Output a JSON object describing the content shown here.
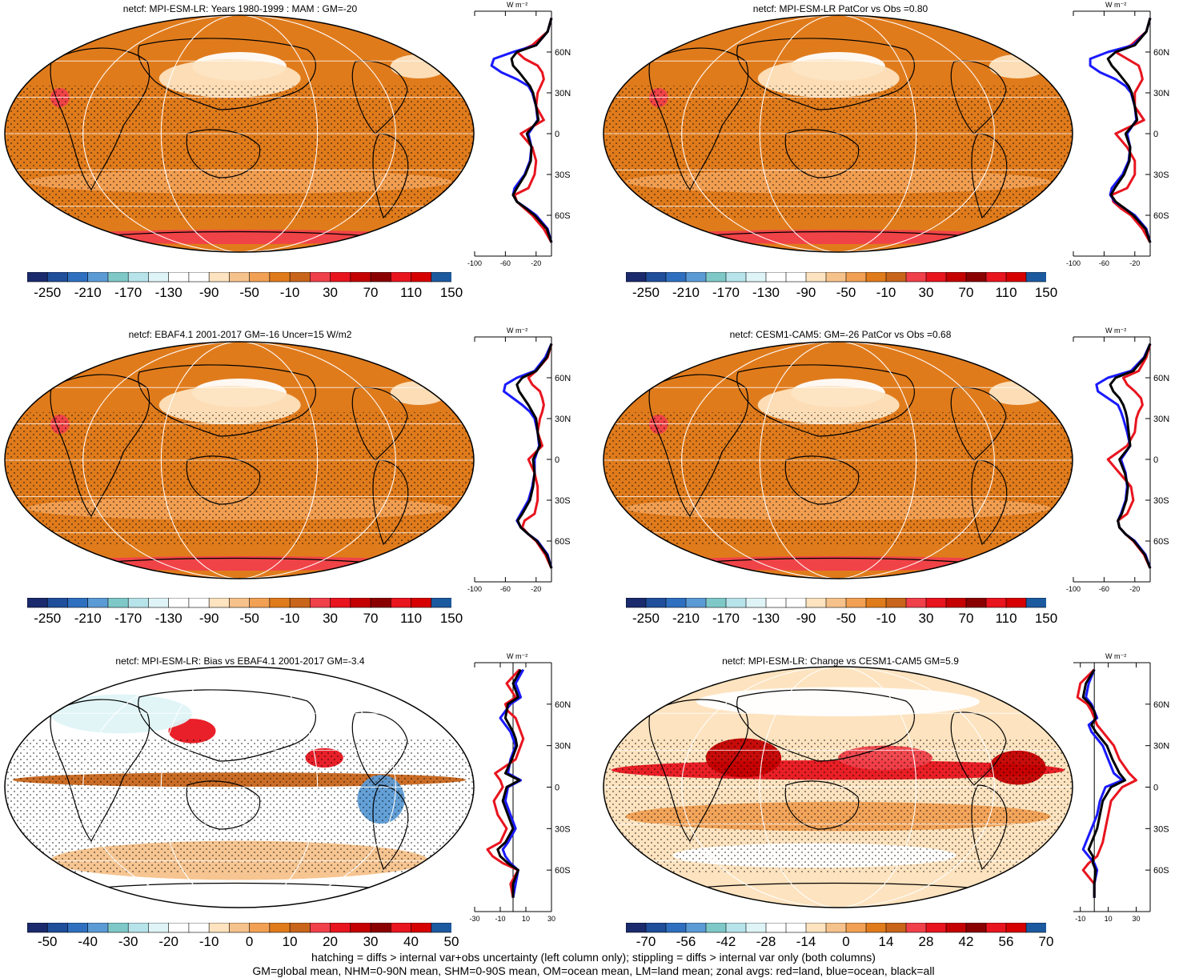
{
  "panels": [
    {
      "id": "p1",
      "title": "netcf: MPI-ESM-LR: Years 1980-1999 : MAM : GM=-20",
      "base": "#e07b1c",
      "kind": "mean",
      "zonal_ticks": [
        "-100",
        "-60",
        "-20"
      ],
      "cb_labels": [
        "-250",
        "-210",
        "-170",
        "-130",
        "-90",
        "-50",
        "-10",
        "30",
        "70",
        "110",
        "150"
      ]
    },
    {
      "id": "p2",
      "title": "netcf: MPI-ESM-LR PatCor vs Obs =0.80",
      "base": "#e07b1c",
      "kind": "mean",
      "zonal_ticks": [
        "-100",
        "-60",
        "-20"
      ],
      "cb_labels": [
        "-250",
        "-210",
        "-170",
        "-130",
        "-90",
        "-50",
        "-10",
        "30",
        "70",
        "110",
        "150"
      ]
    },
    {
      "id": "p3",
      "title": "netcf: EBAF4.1 2001-2017 GM=-16 Uncer=15 W/m2",
      "base": "#e07b1c",
      "kind": "mean",
      "zonal_ticks": [
        "-100",
        "-60",
        "-20"
      ],
      "cb_labels": [
        "-250",
        "-210",
        "-170",
        "-130",
        "-90",
        "-50",
        "-10",
        "30",
        "70",
        "110",
        "150"
      ]
    },
    {
      "id": "p4",
      "title": "netcf: CESM1-CAM5: GM=-26 PatCor vs Obs =0.68",
      "base": "#e07b1c",
      "kind": "mean",
      "zonal_ticks": [
        "-100",
        "-60",
        "-20"
      ],
      "cb_labels": [
        "-250",
        "-210",
        "-170",
        "-130",
        "-90",
        "-50",
        "-10",
        "30",
        "70",
        "110",
        "150"
      ]
    },
    {
      "id": "p5",
      "title": "netcf: MPI-ESM-LR: Bias vs EBAF4.1 2001-2017 GM=-3.4",
      "base": "#ffffff",
      "kind": "diff",
      "zonal_ticks": [
        "-30",
        "-10",
        "10",
        "30"
      ],
      "cb_labels": [
        "-50",
        "-40",
        "-30",
        "-20",
        "-10",
        "0",
        "10",
        "20",
        "30",
        "40",
        "50"
      ]
    },
    {
      "id": "p6",
      "title": "netcf: MPI-ESM-LR: Change vs CESM1-CAM5 GM=5.9",
      "base": "#fde3bf",
      "kind": "diff",
      "zonal_ticks": [
        "-10",
        "10",
        "30"
      ],
      "cb_labels": [
        "-70",
        "-56",
        "-42",
        "-28",
        "-14",
        "0",
        "14",
        "28",
        "42",
        "56",
        "70"
      ]
    }
  ],
  "zonal_lat_labels": [
    "60N",
    "30N",
    "0",
    "30S",
    "60S"
  ],
  "zonal_unit": "W m⁻²",
  "colorbar_colors": [
    "#1a2a6c",
    "#1f4e9a",
    "#2f6fbf",
    "#5b9bd5",
    "#7fc8c8",
    "#b7e3ea",
    "#dff4f7",
    "#ffffff",
    "#ffffff",
    "#fde3bf",
    "#f6c28b",
    "#f1a054",
    "#e07b1c",
    "#c8651a",
    "#f0404a",
    "#e8141e",
    "#c40000",
    "#8a0000",
    "#e8141e",
    "#d60000",
    "#1c5aa0"
  ],
  "footer": {
    "line1": "hatching = diffs > internal var+obs uncertainty (left column only); stippling = diffs > internal var only (both columns)",
    "line2": "GM=global mean, NHM=0-90N mean, SHM=0-90S mean, OM=ocean mean, LM=land mean; zonal avgs: red=land, blue=ocean, black=all"
  },
  "chart_data": [
    {
      "type": "heatmap",
      "title": "netcf: MPI-ESM-LR: Years 1980-1999 : MAM : GM=-20",
      "colorbar": [
        -250,
        -210,
        -170,
        -130,
        -90,
        -50,
        -10,
        30,
        70,
        110,
        150
      ],
      "xlabel": "",
      "ylabel": "",
      "zonal": {
        "y_ticks": [
          "60N",
          "30N",
          "0",
          "30S",
          "60S"
        ],
        "x_ticks": [
          -100,
          -60,
          -20
        ],
        "xlim": [
          -100,
          0
        ],
        "lat": [
          85,
          75,
          65,
          60,
          55,
          50,
          45,
          40,
          35,
          30,
          20,
          10,
          0,
          -10,
          -20,
          -30,
          -40,
          -45,
          -50,
          -55,
          -60,
          -70,
          -80
        ],
        "land": [
          0,
          -5,
          -25,
          -45,
          -35,
          -18,
          -12,
          -10,
          -14,
          -18,
          -20,
          -10,
          -40,
          -25,
          -20,
          -22,
          -30,
          -48,
          -45,
          -35,
          -25,
          -10,
          0
        ],
        "ocean": [
          0,
          -5,
          -20,
          -50,
          -75,
          -78,
          -65,
          -45,
          -30,
          -25,
          -20,
          -18,
          -30,
          -26,
          -28,
          -35,
          -48,
          -50,
          -45,
          -32,
          -20,
          -5,
          0
        ],
        "all": [
          0,
          -5,
          -20,
          -45,
          -52,
          -50,
          -42,
          -35,
          -28,
          -24,
          -20,
          -17,
          -32,
          -26,
          -27,
          -34,
          -45,
          -50,
          -45,
          -33,
          -22,
          -6,
          0
        ]
      }
    },
    {
      "type": "heatmap",
      "title": "netcf: MPI-ESM-LR PatCor vs Obs =0.80",
      "colorbar": [
        -250,
        -210,
        -170,
        -130,
        -90,
        -50,
        -10,
        30,
        70,
        110,
        150
      ],
      "xlabel": "",
      "ylabel": "",
      "zonal": {
        "y_ticks": [
          "60N",
          "30N",
          "0",
          "30S",
          "60S"
        ],
        "x_ticks": [
          -100,
          -60,
          -20
        ],
        "xlim": [
          -100,
          0
        ],
        "lat": [
          85,
          75,
          65,
          60,
          55,
          50,
          45,
          40,
          35,
          30,
          20,
          10,
          0,
          -10,
          -20,
          -30,
          -40,
          -45,
          -50,
          -55,
          -60,
          -70,
          -80
        ],
        "land": [
          0,
          -5,
          -25,
          -45,
          -30,
          -15,
          -12,
          -10,
          -15,
          -20,
          -20,
          -8,
          -45,
          -30,
          -20,
          -20,
          -30,
          -50,
          -48,
          -38,
          -25,
          -10,
          0
        ],
        "ocean": [
          0,
          -5,
          -22,
          -55,
          -78,
          -78,
          -65,
          -45,
          -32,
          -25,
          -20,
          -18,
          -30,
          -26,
          -28,
          -36,
          -50,
          -52,
          -46,
          -33,
          -20,
          -5,
          0
        ],
        "all": [
          0,
          -5,
          -20,
          -45,
          -55,
          -50,
          -42,
          -35,
          -28,
          -24,
          -20,
          -17,
          -32,
          -26,
          -27,
          -34,
          -46,
          -51,
          -45,
          -33,
          -22,
          -6,
          0
        ]
      }
    },
    {
      "type": "heatmap",
      "title": "netcf: EBAF4.1 2001-2017 GM=-16 Uncer=15 W/m2",
      "colorbar": [
        -250,
        -210,
        -170,
        -130,
        -90,
        -50,
        -10,
        30,
        70,
        110,
        150
      ],
      "xlabel": "",
      "ylabel": "",
      "zonal": {
        "y_ticks": [
          "60N",
          "30N",
          "0",
          "30S",
          "60S"
        ],
        "x_ticks": [
          -100,
          -60,
          -20
        ],
        "xlim": [
          -100,
          0
        ],
        "lat": [
          85,
          75,
          65,
          60,
          55,
          50,
          45,
          40,
          35,
          30,
          20,
          10,
          0,
          -10,
          -20,
          -30,
          -40,
          -45,
          -50,
          -55,
          -60,
          -70,
          -80
        ],
        "land": [
          0,
          -5,
          -20,
          -30,
          -25,
          -15,
          -12,
          -10,
          -12,
          -15,
          -18,
          -12,
          -30,
          -22,
          -18,
          -18,
          -22,
          -35,
          -38,
          -30,
          -20,
          -8,
          0
        ],
        "ocean": [
          0,
          -8,
          -22,
          -45,
          -60,
          -62,
          -50,
          -38,
          -28,
          -22,
          -18,
          -16,
          -22,
          -22,
          -25,
          -30,
          -40,
          -45,
          -40,
          -30,
          -18,
          -5,
          0
        ],
        "all": [
          0,
          -6,
          -20,
          -38,
          -45,
          -42,
          -36,
          -30,
          -25,
          -20,
          -18,
          -15,
          -24,
          -22,
          -24,
          -28,
          -38,
          -44,
          -40,
          -30,
          -19,
          -6,
          0
        ]
      }
    },
    {
      "type": "heatmap",
      "title": "netcf: CESM1-CAM5: GM=-26 PatCor vs Obs =0.68",
      "colorbar": [
        -250,
        -210,
        -170,
        -130,
        -90,
        -50,
        -10,
        30,
        70,
        110,
        150
      ],
      "xlabel": "",
      "ylabel": "",
      "zonal": {
        "y_ticks": [
          "60N",
          "30N",
          "0",
          "30S",
          "60S"
        ],
        "x_ticks": [
          -100,
          -60,
          -20
        ],
        "xlim": [
          -100,
          0
        ],
        "lat": [
          85,
          75,
          65,
          60,
          55,
          50,
          45,
          40,
          35,
          30,
          20,
          10,
          0,
          -10,
          -20,
          -30,
          -40,
          -45,
          -50,
          -55,
          -60,
          -70,
          -80
        ],
        "land": [
          0,
          -5,
          -15,
          -35,
          -30,
          -20,
          -12,
          -10,
          -15,
          -18,
          -20,
          -30,
          -55,
          -40,
          -25,
          -22,
          -30,
          -42,
          -40,
          -32,
          -22,
          -8,
          0
        ],
        "ocean": [
          0,
          -8,
          -25,
          -55,
          -70,
          -68,
          -55,
          -42,
          -38,
          -35,
          -30,
          -26,
          -38,
          -32,
          -30,
          -32,
          -38,
          -42,
          -40,
          -32,
          -20,
          -6,
          0
        ],
        "all": [
          0,
          -7,
          -22,
          -45,
          -52,
          -48,
          -40,
          -35,
          -32,
          -30,
          -28,
          -26,
          -40,
          -33,
          -29,
          -31,
          -37,
          -42,
          -40,
          -32,
          -21,
          -7,
          0
        ]
      }
    },
    {
      "type": "heatmap",
      "title": "netcf: MPI-ESM-LR: Bias vs EBAF4.1 2001-2017 GM=-3.4",
      "colorbar": [
        -50,
        -40,
        -30,
        -20,
        -10,
        0,
        10,
        20,
        30,
        40,
        50
      ],
      "xlabel": "",
      "ylabel": "",
      "zonal": {
        "y_ticks": [
          "60N",
          "30N",
          "0",
          "30S",
          "60S"
        ],
        "x_ticks": [
          -30,
          -10,
          10,
          30
        ],
        "xlim": [
          -30,
          30
        ],
        "lat": [
          85,
          75,
          65,
          60,
          55,
          50,
          45,
          40,
          35,
          30,
          20,
          10,
          5,
          0,
          -10,
          -20,
          -30,
          -40,
          -45,
          -50,
          -55,
          -60,
          -70,
          -80
        ],
        "land": [
          5,
          -5,
          2,
          -6,
          -4,
          2,
          4,
          6,
          8,
          6,
          2,
          -14,
          -10,
          -8,
          -15,
          -12,
          -5,
          -10,
          -20,
          -16,
          -8,
          4,
          -2,
          0
        ],
        "ocean": [
          8,
          2,
          6,
          -2,
          -6,
          -10,
          -6,
          -2,
          0,
          2,
          -2,
          -4,
          6,
          -4,
          -6,
          -2,
          2,
          -4,
          -8,
          -6,
          -2,
          4,
          2,
          0
        ],
        "all": [
          6,
          0,
          4,
          -4,
          -5,
          -6,
          -3,
          0,
          2,
          3,
          -1,
          -6,
          5,
          -5,
          -8,
          -4,
          0,
          -6,
          -12,
          -10,
          -4,
          4,
          0,
          0
        ]
      }
    },
    {
      "type": "heatmap",
      "title": "netcf: MPI-ESM-LR: Change vs CESM1-CAM5 GM=5.9",
      "colorbar": [
        -70,
        -56,
        -42,
        -28,
        -14,
        0,
        14,
        28,
        42,
        56,
        70
      ],
      "xlabel": "",
      "ylabel": "",
      "zonal": {
        "y_ticks": [
          "60N",
          "30N",
          "0",
          "30S",
          "60S"
        ],
        "x_ticks": [
          -10,
          10,
          30
        ],
        "xlim": [
          -15,
          40
        ],
        "lat": [
          85,
          75,
          65,
          60,
          55,
          50,
          45,
          40,
          35,
          30,
          20,
          10,
          5,
          0,
          -10,
          -20,
          -30,
          -40,
          -45,
          -50,
          -55,
          -60,
          -70,
          -80
        ],
        "land": [
          0,
          -10,
          -12,
          -5,
          -2,
          0,
          2,
          6,
          10,
          14,
          18,
          25,
          30,
          20,
          12,
          10,
          8,
          6,
          4,
          2,
          -4,
          -8,
          0,
          0
        ],
        "ocean": [
          0,
          -4,
          -6,
          -2,
          0,
          2,
          -4,
          -2,
          2,
          6,
          10,
          14,
          20,
          8,
          4,
          2,
          -2,
          -6,
          -8,
          -4,
          0,
          2,
          0,
          0
        ],
        "all": [
          0,
          -6,
          -8,
          -3,
          0,
          1,
          -2,
          1,
          5,
          9,
          13,
          18,
          22,
          12,
          6,
          4,
          2,
          -2,
          -4,
          -1,
          -1,
          1,
          0,
          0
        ]
      }
    }
  ]
}
